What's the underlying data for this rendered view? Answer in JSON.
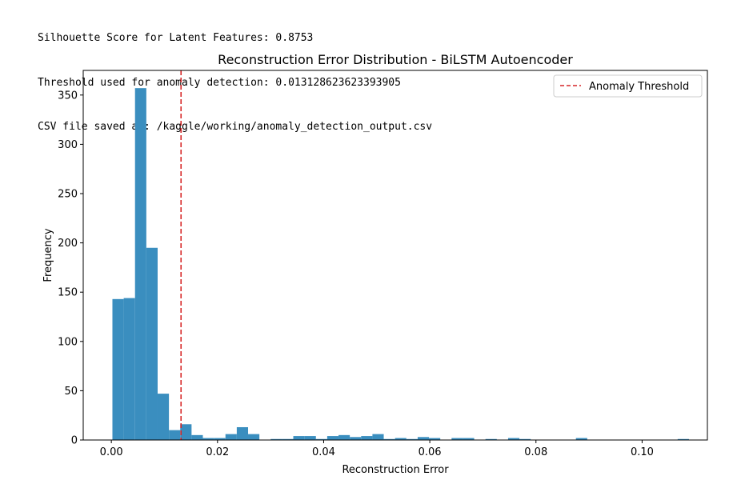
{
  "console": {
    "lines": [
      "Silhouette Score for Latent Features: 0.8753",
      "Threshold used for anomaly detection: 0.013128623623393905",
      "CSV file saved at: /kaggle/working/anomaly_detection_output.csv"
    ]
  },
  "chart_data": {
    "type": "bar",
    "title": "Reconstruction Error Distribution - BiLSTM Autoencoder",
    "xlabel": "Reconstruction Error",
    "ylabel": "Frequency",
    "xlim": [
      -0.0053,
      0.1123
    ],
    "ylim": [
      0,
      375
    ],
    "xticks": [
      0.0,
      0.02,
      0.04,
      0.06,
      0.08,
      0.1
    ],
    "xtick_labels": [
      "0.00",
      "0.02",
      "0.04",
      "0.06",
      "0.08",
      "0.10"
    ],
    "yticks": [
      0,
      50,
      100,
      150,
      200,
      250,
      300,
      350
    ],
    "yticks_labels": [
      "0",
      "50",
      "100",
      "150",
      "200",
      "250",
      "300",
      "350"
    ],
    "bar_color": "#3a8ebf",
    "bins": {
      "start": 0.0002,
      "width": 0.00213,
      "counts": [
        143,
        144,
        357,
        195,
        47,
        10,
        16,
        5,
        2,
        2,
        6,
        13,
        6,
        0,
        1,
        1,
        4,
        4,
        1,
        4,
        5,
        3,
        4,
        6,
        1,
        2,
        1,
        3,
        2,
        0,
        2,
        2,
        0,
        1,
        0,
        2,
        1,
        0,
        0,
        0,
        0,
        2,
        0,
        0,
        0,
        0,
        0,
        0,
        0,
        0,
        1
      ]
    },
    "threshold": {
      "value": 0.013128623623393905,
      "label": "Anomaly Threshold",
      "color": "#d62728",
      "style": "dashed"
    },
    "legend_position": "top-right",
    "grid": false
  }
}
